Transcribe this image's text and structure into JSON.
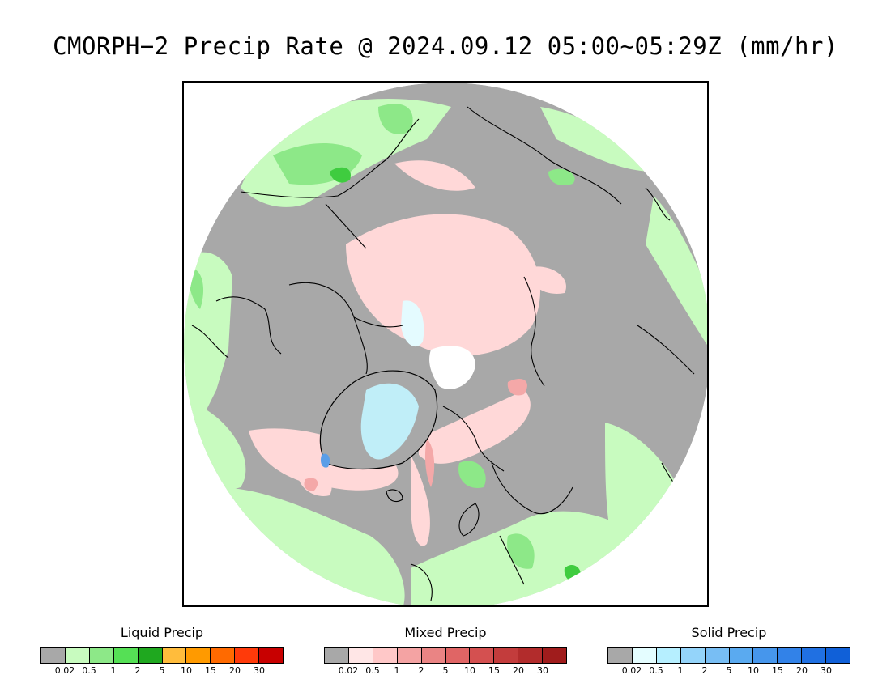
{
  "title": "CMORPH−2 Precip Rate @ 2024.09.12 05:00~05:29Z (mm/hr)",
  "map": {
    "projection": "north-polar-stereographic",
    "colors": {
      "no_precip": "#a8a8a8",
      "liquid_light": "#c8fbbf",
      "liquid_mid": "#8de888",
      "liquid_heavy": "#3fcc3f",
      "mixed_light": "#ffd8d8",
      "mixed_mid": "#f4a8a8",
      "solid_light": "#e4fbff",
      "solid_mid": "#c0eef8",
      "solid_heavy": "#5a9ee8"
    }
  },
  "legends": [
    {
      "title": "Liquid Precip",
      "colors": [
        "#a8a8a8",
        "#c8fbbf",
        "#8de888",
        "#55e055",
        "#1fa81f",
        "#ffbc3c",
        "#ff9a00",
        "#ff6a00",
        "#ff3a0a",
        "#c80000"
      ],
      "ticks": [
        "0.02",
        "0.5",
        "1",
        "2",
        "5",
        "10",
        "15",
        "20",
        "30"
      ]
    },
    {
      "title": "Mixed Precip",
      "colors": [
        "#a8a8a8",
        "#ffe6e6",
        "#ffc8c8",
        "#f4a3a3",
        "#ea8484",
        "#e06565",
        "#d45050",
        "#c33c3c",
        "#b22c2c",
        "#a01c1c"
      ],
      "ticks": [
        "0.02",
        "0.5",
        "1",
        "2",
        "5",
        "10",
        "15",
        "20",
        "30"
      ]
    },
    {
      "title": "Solid Precip",
      "colors": [
        "#a8a8a8",
        "#e4fdff",
        "#b6efff",
        "#94d4fa",
        "#78bef4",
        "#5aaaf0",
        "#4696ec",
        "#3282e8",
        "#2070e2",
        "#1060d8"
      ],
      "ticks": [
        "0.02",
        "0.5",
        "1",
        "2",
        "5",
        "10",
        "15",
        "20",
        "30"
      ]
    }
  ]
}
